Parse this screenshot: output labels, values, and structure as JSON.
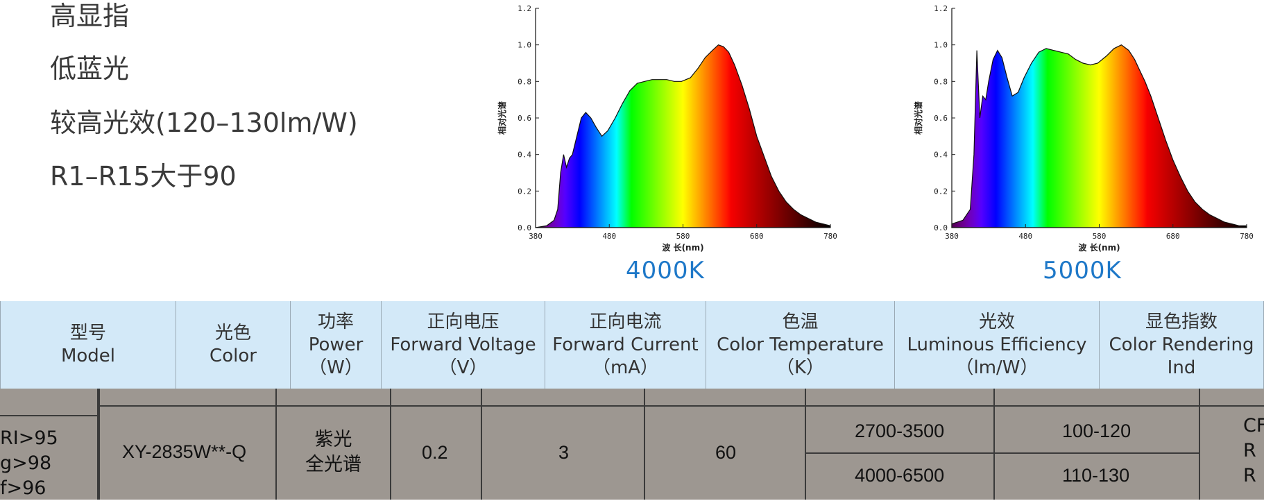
{
  "features": [
    "高显指",
    "低蓝光",
    "较高光效(120–130lm/W)",
    "R1–R15大于90"
  ],
  "charts": [
    {
      "label": "4000K",
      "ylabel": "相对光谱",
      "xlabel": "波 长(nm)"
    },
    {
      "label": "5000K",
      "ylabel": "相对光谱",
      "xlabel": "波 长(nm)"
    }
  ],
  "chart_data": [
    {
      "type": "area",
      "title": "",
      "caption": "4000K",
      "xlabel": "波 长(nm)",
      "ylabel": "相对光谱",
      "xlim": [
        380,
        780
      ],
      "ylim": [
        0,
        1.2
      ],
      "xticks": [
        "380",
        "480",
        "580",
        "680",
        "780"
      ],
      "yticks": [
        "0.0",
        "0.2",
        "0.4",
        "0.6",
        "0.8",
        "1.0",
        "1.2"
      ],
      "series": [
        {
          "x": [
            380,
            395,
            405,
            410,
            414,
            418,
            422,
            426,
            430,
            436,
            442,
            448,
            455,
            462,
            470,
            478,
            488,
            498,
            508,
            518,
            528,
            538,
            548,
            558,
            568,
            578,
            590,
            600,
            610,
            620,
            628,
            635,
            642,
            650,
            660,
            670,
            680,
            690,
            700,
            710,
            720,
            730,
            740,
            750,
            760,
            770,
            780
          ],
          "y": [
            0.0,
            0.01,
            0.04,
            0.1,
            0.3,
            0.4,
            0.33,
            0.38,
            0.4,
            0.5,
            0.6,
            0.63,
            0.6,
            0.55,
            0.5,
            0.53,
            0.6,
            0.68,
            0.75,
            0.79,
            0.8,
            0.81,
            0.81,
            0.81,
            0.8,
            0.8,
            0.82,
            0.87,
            0.93,
            0.97,
            1.0,
            0.99,
            0.96,
            0.89,
            0.78,
            0.65,
            0.5,
            0.39,
            0.28,
            0.2,
            0.14,
            0.1,
            0.07,
            0.05,
            0.03,
            0.02,
            0.01
          ]
        }
      ]
    },
    {
      "type": "area",
      "title": "",
      "caption": "5000K",
      "xlabel": "波 长(nm)",
      "ylabel": "相对光谱",
      "xlim": [
        380,
        780
      ],
      "ylim": [
        0,
        1.2
      ],
      "xticks": [
        "380",
        "480",
        "580",
        "680",
        "780"
      ],
      "yticks": [
        "0.0",
        "0.2",
        "0.4",
        "0.6",
        "0.8",
        "1.0",
        "1.2"
      ],
      "series": [
        {
          "x": [
            380,
            395,
            405,
            410,
            414,
            418,
            422,
            426,
            430,
            436,
            442,
            448,
            455,
            462,
            470,
            478,
            488,
            498,
            508,
            518,
            528,
            538,
            548,
            558,
            568,
            578,
            590,
            600,
            610,
            620,
            628,
            635,
            642,
            650,
            660,
            670,
            680,
            690,
            700,
            710,
            720,
            730,
            740,
            750,
            760,
            770,
            780
          ],
          "y": [
            0.02,
            0.04,
            0.1,
            0.4,
            0.97,
            0.6,
            0.72,
            0.7,
            0.8,
            0.92,
            0.97,
            0.93,
            0.82,
            0.72,
            0.74,
            0.82,
            0.9,
            0.96,
            0.98,
            0.97,
            0.96,
            0.95,
            0.92,
            0.9,
            0.89,
            0.9,
            0.94,
            0.98,
            1.0,
            0.97,
            0.92,
            0.86,
            0.8,
            0.72,
            0.6,
            0.48,
            0.37,
            0.28,
            0.2,
            0.14,
            0.1,
            0.07,
            0.05,
            0.03,
            0.02,
            0.01,
            0.01
          ]
        }
      ]
    }
  ],
  "table": {
    "headers": [
      [
        "型号",
        "Model"
      ],
      [
        "光色",
        "Color"
      ],
      [
        "功率",
        "Power",
        "（W）"
      ],
      [
        "正向电压",
        "Forward Voltage",
        "（V）"
      ],
      [
        "正向电流",
        "Forward Current",
        "（mA）"
      ],
      [
        "色温",
        "Color Temperature",
        "（K）"
      ],
      [
        "光效",
        "Luminous Efficiency",
        "（lm/W）"
      ],
      [
        "显色指数",
        "Color Rendering",
        "Ind"
      ]
    ],
    "left_cell": [
      "RI>95",
      "g>98",
      "f>96"
    ],
    "row": {
      "model": "XY-2835W**-Q",
      "color": [
        "紫光",
        "全光谱"
      ],
      "power": "0.2",
      "voltage": "3",
      "current": "60",
      "cct": [
        "2700-3500",
        "4000-6500"
      ],
      "efficiency": [
        "100-120",
        "110-130"
      ],
      "cri": [
        "CF",
        "R",
        "R"
      ]
    }
  }
}
